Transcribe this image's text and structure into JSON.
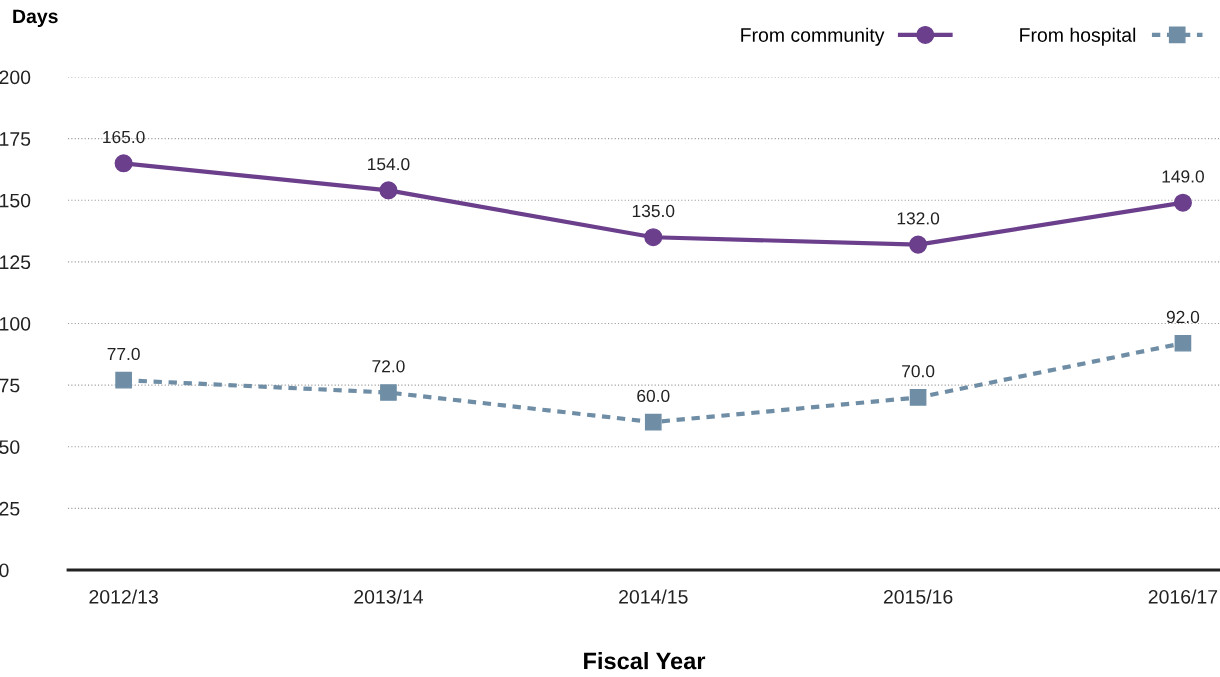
{
  "chart_data": {
    "type": "line",
    "ylabel": "Days",
    "xlabel": "Fiscal Year",
    "categories": [
      "2012/13",
      "2013/14",
      "2014/15",
      "2015/16",
      "2016/17"
    ],
    "series": [
      {
        "name": "From community",
        "color": "#6b3f8c",
        "values": [
          165.0,
          154.0,
          135.0,
          132.0,
          149.0
        ],
        "value_labels": [
          "165.0",
          "154.0",
          "135.0",
          "132.0",
          "149.0"
        ],
        "marker": "circle",
        "line_style": "solid"
      },
      {
        "name": "From hospital",
        "color": "#6f8ea6",
        "values": [
          77.0,
          72.0,
          60.0,
          70.0,
          92.0
        ],
        "value_labels": [
          "77.0",
          "72.0",
          "60.0",
          "70.0",
          "92.0"
        ],
        "marker": "square",
        "line_style": "dotted"
      }
    ],
    "ylim": [
      0,
      200
    ],
    "yticks": [
      0,
      25,
      50,
      75,
      100,
      125,
      150,
      175,
      200
    ],
    "grid": "y",
    "legend": "top right"
  }
}
